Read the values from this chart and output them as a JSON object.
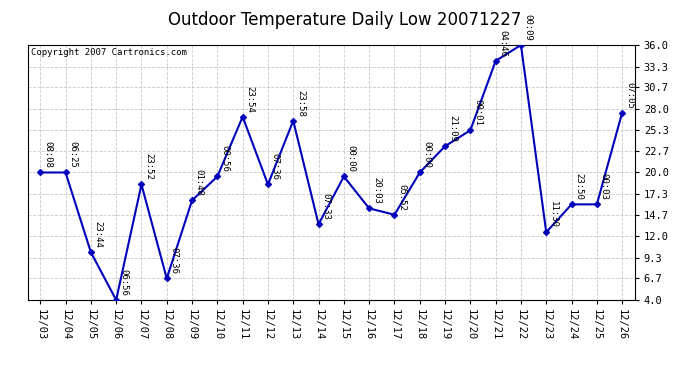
{
  "title": "Outdoor Temperature Daily Low 20071227",
  "copyright": "Copyright 2007 Cartronics.com",
  "dates": [
    "12/03",
    "12/04",
    "12/05",
    "12/06",
    "12/07",
    "12/08",
    "12/09",
    "12/10",
    "12/11",
    "12/12",
    "12/13",
    "12/14",
    "12/15",
    "12/16",
    "12/17",
    "12/18",
    "12/19",
    "12/20",
    "12/21",
    "12/22",
    "12/23",
    "12/24",
    "12/25",
    "12/26"
  ],
  "values": [
    20.0,
    20.0,
    10.0,
    4.0,
    18.5,
    6.7,
    16.5,
    19.5,
    27.0,
    18.5,
    26.5,
    13.5,
    19.5,
    15.5,
    14.7,
    20.0,
    23.3,
    25.3,
    34.0,
    36.0,
    12.5,
    16.0,
    16.0,
    27.5
  ],
  "labels": [
    "08:08",
    "06:25",
    "23:44",
    "06:56",
    "23:52",
    "07:36",
    "01:48",
    "00:56",
    "23:54",
    "07:36",
    "23:58",
    "07:33",
    "00:00",
    "20:03",
    "05:52",
    "00:00",
    "21:09",
    "00:01",
    "04:46",
    "00:09",
    "11:30",
    "23:50",
    "00:03",
    "07:05"
  ],
  "ylim": [
    4.0,
    36.0
  ],
  "yticks": [
    4.0,
    6.7,
    9.3,
    12.0,
    14.7,
    17.3,
    20.0,
    22.7,
    25.3,
    28.0,
    30.7,
    33.3,
    36.0
  ],
  "line_color": "#0000bb",
  "marker_color": "#0000bb",
  "bg_color": "#ffffff",
  "plot_bg_color": "#ffffff",
  "grid_color": "#bbbbbb",
  "title_fontsize": 12,
  "label_fontsize": 6.5,
  "tick_fontsize": 7.5,
  "copyright_fontsize": 6.5
}
